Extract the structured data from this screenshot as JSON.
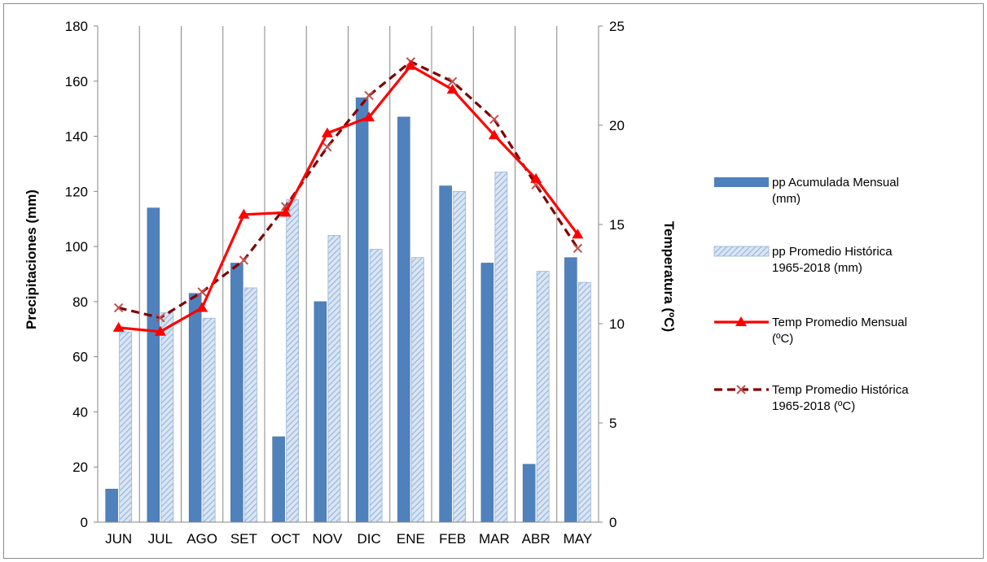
{
  "chart_data": {
    "type": "bar",
    "categories": [
      "JUN",
      "JUL",
      "AGO",
      "SET",
      "OCT",
      "NOV",
      "DIC",
      "ENE",
      "FEB",
      "MAR",
      "ABR",
      "MAY"
    ],
    "series": [
      {
        "name": "pp Acumulada Mensual (mm)",
        "name_lines": [
          "pp Acumulada Mensual",
          "(mm)"
        ],
        "kind": "bar",
        "axis": "left",
        "color": "#4f81bd",
        "pattern": "solid",
        "values": [
          12,
          114,
          83,
          94,
          31,
          80,
          154,
          147,
          122,
          94,
          21,
          96
        ]
      },
      {
        "name": "pp Promedio Histórica 1965-2018 (mm)",
        "name_lines": [
          "pp Promedio Histórica",
          "1965-2018 (mm)"
        ],
        "kind": "bar",
        "axis": "left",
        "color": "#4f81bd",
        "pattern": "hatch",
        "values": [
          69,
          76,
          74,
          85,
          117,
          104,
          99,
          96,
          120,
          127,
          91,
          87
        ]
      },
      {
        "name": "Temp Promedio Mensual (ºC)",
        "name_lines": [
          "Temp Promedio Mensual",
          "(ºC)"
        ],
        "kind": "line",
        "axis": "right",
        "color": "#ff0000",
        "marker": "triangle",
        "dash": "solid",
        "values": [
          9.8,
          9.6,
          10.8,
          15.5,
          15.6,
          19.6,
          20.4,
          23.0,
          21.8,
          19.5,
          17.3,
          14.5
        ]
      },
      {
        "name": "Temp Promedio Histórica 1965-2018 (ºC)",
        "name_lines": [
          "Temp Promedio Histórica",
          "1965-2018 (ºC)"
        ],
        "kind": "line",
        "axis": "right",
        "color": "#7f0000",
        "marker": "x",
        "dash": "dashed",
        "values": [
          10.8,
          10.3,
          11.6,
          13.2,
          15.9,
          18.9,
          21.5,
          23.2,
          22.2,
          20.3,
          17.0,
          13.8
        ]
      }
    ],
    "y_left": {
      "label": "Precipitaciones (mm)",
      "lim": [
        0,
        180
      ],
      "ticks": [
        "0",
        "20",
        "40",
        "60",
        "80",
        "100",
        "120",
        "140",
        "160",
        "180"
      ]
    },
    "y_right": {
      "label": "Temperatura (ºC)",
      "lim": [
        0,
        25
      ],
      "ticks": [
        "0",
        "5",
        "10",
        "15",
        "20",
        "25"
      ]
    },
    "grid": "vertical",
    "legend": "right"
  }
}
